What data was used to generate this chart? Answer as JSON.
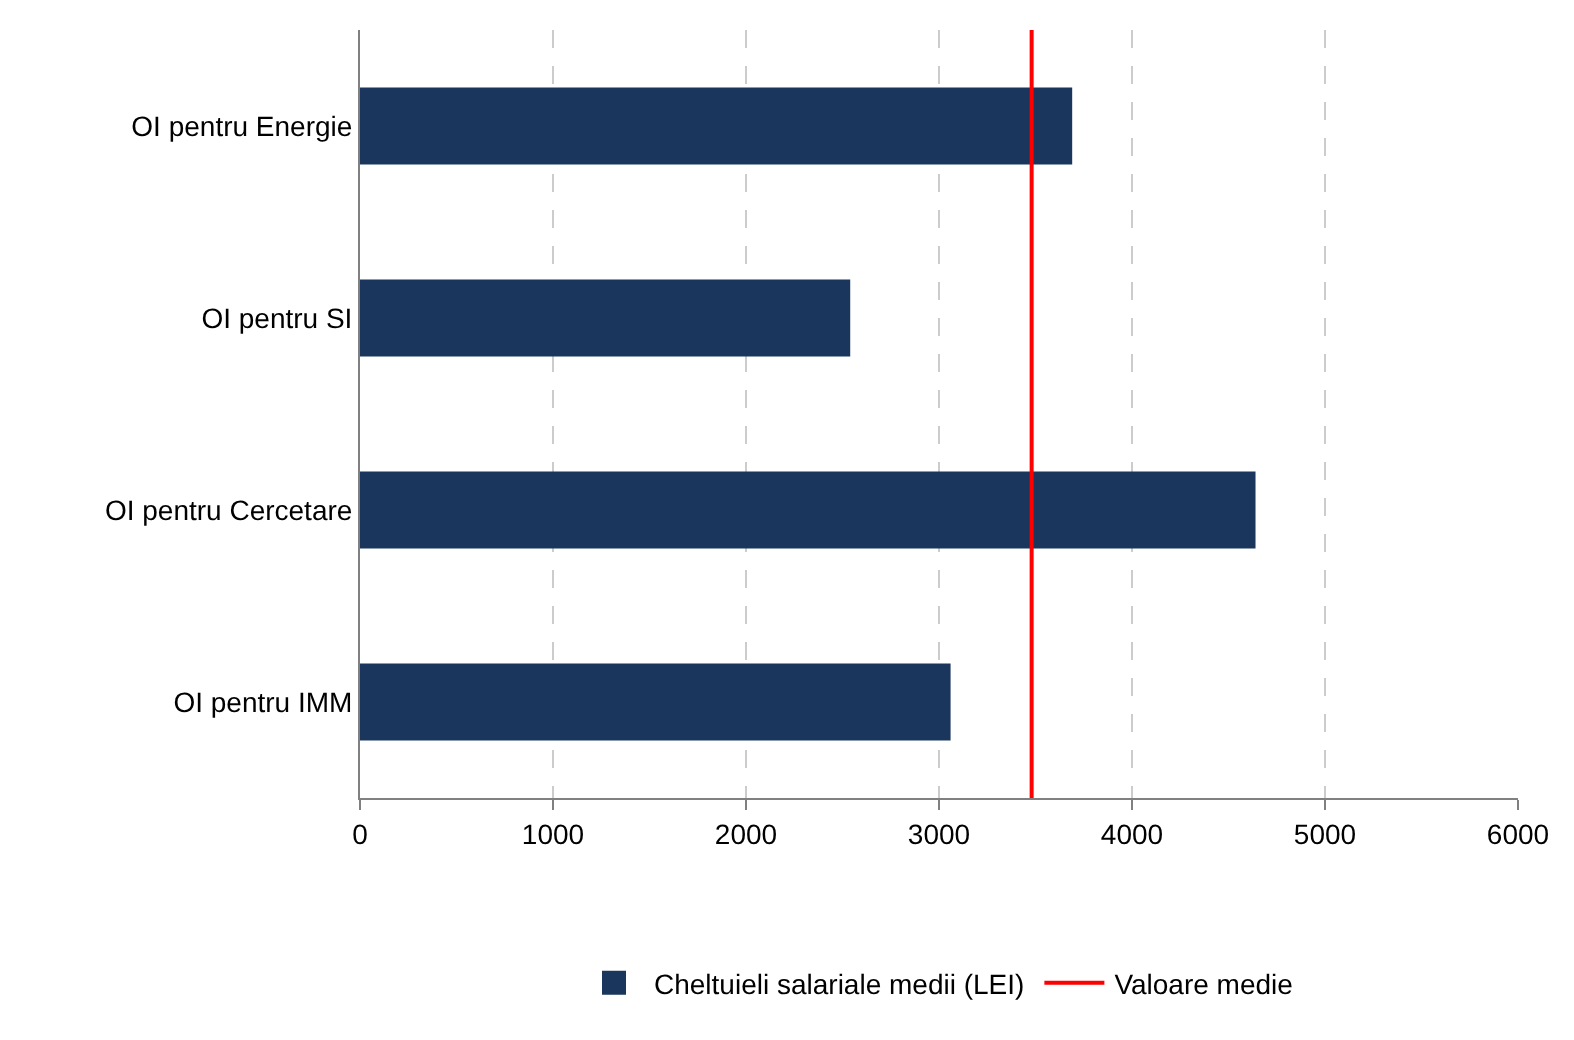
{
  "chart_data": {
    "type": "bar",
    "orientation": "horizontal",
    "categories": [
      "OI pentru Energie",
      "OI pentru SI",
      "OI pentru Cercetare",
      "OI pentru IMM"
    ],
    "series": [
      {
        "name": "Cheltuieli salariale medii (LEI)",
        "color": "#1a365d",
        "values": [
          3690,
          2540,
          4640,
          3060
        ]
      }
    ],
    "ref_lines": [
      {
        "axis": "x",
        "value": 3480,
        "label": "Valoare medie",
        "color": "#ff0000",
        "line_style": "solid"
      }
    ],
    "xlim": [
      0,
      6000
    ],
    "xticks": [
      0,
      1000,
      2000,
      3000,
      4000,
      5000,
      6000
    ],
    "grid": "x",
    "legend": "bottom"
  }
}
